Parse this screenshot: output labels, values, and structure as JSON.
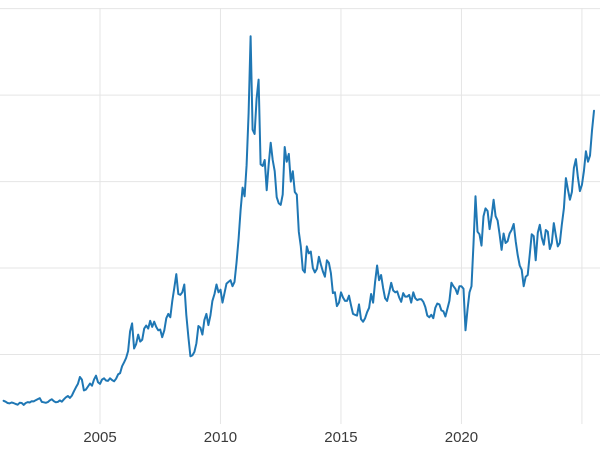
{
  "figure": {
    "background": "#ffffff",
    "line_color": "#1f77b4",
    "grid_color": "#e5e5e5",
    "tick_label_color": "#3b3b3b"
  },
  "chart_data": {
    "type": "line",
    "title": "",
    "xlabel": "",
    "ylabel": "",
    "legend": "none",
    "grid": true,
    "x_range": [
      2000.85,
      2025.75
    ],
    "y_range": [
      0,
      51
    ],
    "x_ticks": [
      2005,
      2010,
      2015,
      2020
    ],
    "x_tick_labels": [
      "2005",
      "2010",
      "2015",
      "2020"
    ],
    "x_gridlines": [
      2005,
      2010,
      2015,
      2020,
      2025
    ],
    "y_gridlines": [
      10,
      20,
      30,
      40,
      50
    ],
    "x_start": 2001.0,
    "x_step": 0.0833333,
    "series": [
      {
        "name": "",
        "values": [
          4.65,
          4.55,
          4.4,
          4.35,
          4.45,
          4.38,
          4.28,
          4.2,
          4.42,
          4.4,
          4.18,
          4.4,
          4.5,
          4.45,
          4.6,
          4.58,
          4.72,
          4.85,
          4.95,
          4.52,
          4.48,
          4.42,
          4.5,
          4.7,
          4.82,
          4.62,
          4.48,
          4.52,
          4.7,
          4.55,
          4.82,
          5.05,
          5.2,
          4.98,
          5.25,
          5.75,
          6.2,
          6.6,
          7.4,
          7.1,
          5.85,
          5.95,
          6.3,
          6.65,
          6.4,
          7.1,
          7.55,
          6.8,
          6.6,
          7.1,
          7.25,
          7.0,
          6.95,
          7.25,
          7.05,
          6.9,
          7.2,
          7.7,
          7.85,
          8.65,
          9.1,
          9.6,
          10.4,
          12.7,
          13.6,
          10.7,
          11.2,
          12.3,
          11.5,
          11.7,
          13.0,
          13.35,
          13.0,
          13.9,
          13.2,
          13.8,
          13.2,
          12.8,
          12.9,
          12.0,
          12.8,
          14.2,
          14.7,
          14.3,
          16.2,
          17.7,
          19.3,
          17.0,
          16.9,
          17.2,
          18.1,
          14.6,
          12.0,
          9.8,
          9.9,
          10.3,
          11.3,
          13.3,
          13.1,
          12.3,
          14.0,
          14.7,
          13.4,
          14.5,
          16.2,
          17.0,
          18.1,
          17.2,
          17.5,
          16.0,
          17.1,
          18.2,
          18.4,
          18.6,
          17.9,
          18.4,
          20.6,
          23.4,
          26.7,
          29.3,
          28.3,
          31.9,
          37.9,
          46.8,
          36.0,
          35.5,
          39.6,
          41.8,
          32.0,
          31.8,
          32.5,
          29.0,
          32.0,
          34.5,
          32.5,
          31.2,
          28.2,
          27.5,
          27.3,
          28.5,
          34.0,
          32.3,
          33.2,
          30.0,
          31.2,
          28.8,
          28.5,
          24.2,
          22.5,
          19.8,
          19.5,
          22.5,
          21.7,
          21.9,
          20.0,
          19.5,
          19.9,
          21.3,
          20.4,
          19.6,
          19.0,
          20.9,
          20.6,
          19.4,
          17.1,
          17.2,
          15.6,
          16.0,
          17.2,
          16.6,
          16.2,
          16.2,
          16.8,
          15.7,
          14.7,
          14.6,
          14.5,
          15.8,
          14.1,
          13.8,
          14.2,
          14.9,
          15.4,
          17.0,
          16.0,
          18.4,
          20.3,
          18.6,
          19.2,
          17.7,
          16.5,
          16.2,
          17.2,
          18.3,
          17.4,
          17.2,
          17.3,
          16.6,
          16.1,
          17.1,
          16.7,
          16.7,
          16.9,
          16.0,
          17.2,
          16.5,
          16.3,
          16.4,
          16.4,
          16.1,
          15.5,
          14.5,
          14.3,
          14.6,
          14.2,
          15.4,
          15.9,
          15.8,
          15.1,
          15.0,
          14.4,
          15.3,
          16.2,
          18.3,
          17.9,
          17.6,
          17.0,
          17.9,
          17.9,
          17.6,
          12.8,
          15.2,
          17.2,
          17.9,
          22.8,
          28.3,
          24.2,
          23.9,
          22.6,
          26.0,
          26.9,
          26.6,
          24.5,
          26.0,
          27.9,
          26.0,
          25.5,
          23.9,
          22.1,
          24.0,
          22.9,
          23.1,
          24.0,
          24.4,
          25.1,
          23.1,
          21.5,
          20.3,
          19.8,
          17.9,
          19.0,
          19.2,
          21.5,
          23.9,
          23.7,
          20.9,
          24.1,
          25.0,
          23.5,
          22.7,
          24.4,
          24.2,
          22.2,
          22.9,
          25.2,
          23.8,
          22.5,
          22.9,
          25.0,
          26.9,
          30.4,
          29.1,
          27.9,
          28.8,
          31.6,
          32.6,
          30.5,
          28.9,
          29.6,
          31.2,
          33.5,
          32.3,
          33.0,
          35.9,
          38.2
        ]
      }
    ]
  }
}
